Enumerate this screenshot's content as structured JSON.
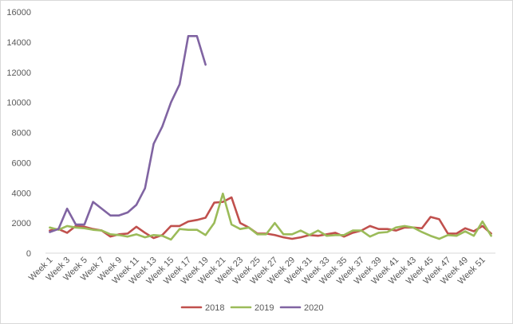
{
  "chart_data": {
    "type": "line",
    "title": "",
    "xlabel": "",
    "ylabel": "",
    "ylim": [
      0,
      16000
    ],
    "yticks": [
      0,
      2000,
      4000,
      6000,
      8000,
      10000,
      12000,
      14000,
      16000
    ],
    "ytick_labels": [
      "0",
      "2000",
      "4000",
      "6000",
      "8000",
      "10000",
      "12000",
      "14000",
      "16000"
    ],
    "grid": false,
    "legend_position": "bottom",
    "categories": [
      "Week 1",
      "Week 2",
      "Week 3",
      "Week 4",
      "Week 5",
      "Week 6",
      "Week 7",
      "Week 8",
      "Week 9",
      "Week 10",
      "Week 11",
      "Week 12",
      "Week 13",
      "Week 14",
      "Week 15",
      "Week 16",
      "Week 17",
      "Week 18",
      "Week 19",
      "Week 20",
      "Week 21",
      "Week 22",
      "Week 23",
      "Week 24",
      "Week 25",
      "Week 26",
      "Week 27",
      "Week 28",
      "Week 29",
      "Week 30",
      "Week 31",
      "Week 32",
      "Week 33",
      "Week 34",
      "Week 35",
      "Week 36",
      "Week 37",
      "Week 38",
      "Week 39",
      "Week 40",
      "Week 41",
      "Week 42",
      "Week 43",
      "Week 44",
      "Week 45",
      "Week 46",
      "Week 47",
      "Week 48",
      "Week 49",
      "Week 50",
      "Week 51",
      "Week 52"
    ],
    "xtick_labels": [
      "Week 1",
      "Week 3",
      "Week 5",
      "Week 7",
      "Week 9",
      "Week 11",
      "Week 13",
      "Week 15",
      "Week 17",
      "Week 19",
      "Week 21",
      "Week 23",
      "Week 25",
      "Week 27",
      "Week 29",
      "Week 31",
      "Week 33",
      "Week 35",
      "Week 37",
      "Week 39",
      "Week 41",
      "Week 43",
      "Week 45",
      "Week 47",
      "Week 49",
      "Week 51"
    ],
    "series": [
      {
        "name": "2018",
        "color": "#c0504d",
        "values": [
          1500,
          1600,
          1350,
          1800,
          1750,
          1600,
          1500,
          1100,
          1250,
          1300,
          1750,
          1350,
          1000,
          1200,
          1800,
          1800,
          2100,
          2200,
          2350,
          3350,
          3400,
          3700,
          2000,
          1700,
          1300,
          1300,
          1200,
          1050,
          950,
          1050,
          1200,
          1150,
          1250,
          1350,
          1100,
          1350,
          1500,
          1800,
          1600,
          1600,
          1500,
          1700,
          1700,
          1650,
          2400,
          2250,
          1300,
          1300,
          1650,
          1450,
          1800,
          1300
        ]
      },
      {
        "name": "2019",
        "color": "#9bbb59",
        "values": [
          1700,
          1550,
          1800,
          1700,
          1650,
          1550,
          1500,
          1250,
          1200,
          1100,
          1250,
          1050,
          1200,
          1150,
          900,
          1600,
          1550,
          1550,
          1200,
          2000,
          3950,
          1900,
          1600,
          1700,
          1250,
          1250,
          2000,
          1250,
          1250,
          1500,
          1200,
          1500,
          1150,
          1200,
          1200,
          1500,
          1500,
          1100,
          1350,
          1400,
          1700,
          1800,
          1700,
          1400,
          1150,
          950,
          1200,
          1150,
          1450,
          1150,
          2100,
          1150
        ]
      },
      {
        "name": "2020",
        "color": "#8064a2",
        "values": [
          1400,
          1600,
          2950,
          1900,
          1900,
          3400,
          2950,
          2500,
          2500,
          2700,
          3200,
          4300,
          7250,
          8400,
          10000,
          11200,
          14400,
          14400,
          12500,
          null,
          null,
          null,
          null,
          null,
          null,
          null,
          null,
          null,
          null,
          null,
          null,
          null,
          null,
          null,
          null,
          null,
          null,
          null,
          null,
          null,
          null,
          null,
          null,
          null,
          null,
          null,
          null,
          null,
          null,
          null,
          null,
          null
        ]
      }
    ]
  }
}
